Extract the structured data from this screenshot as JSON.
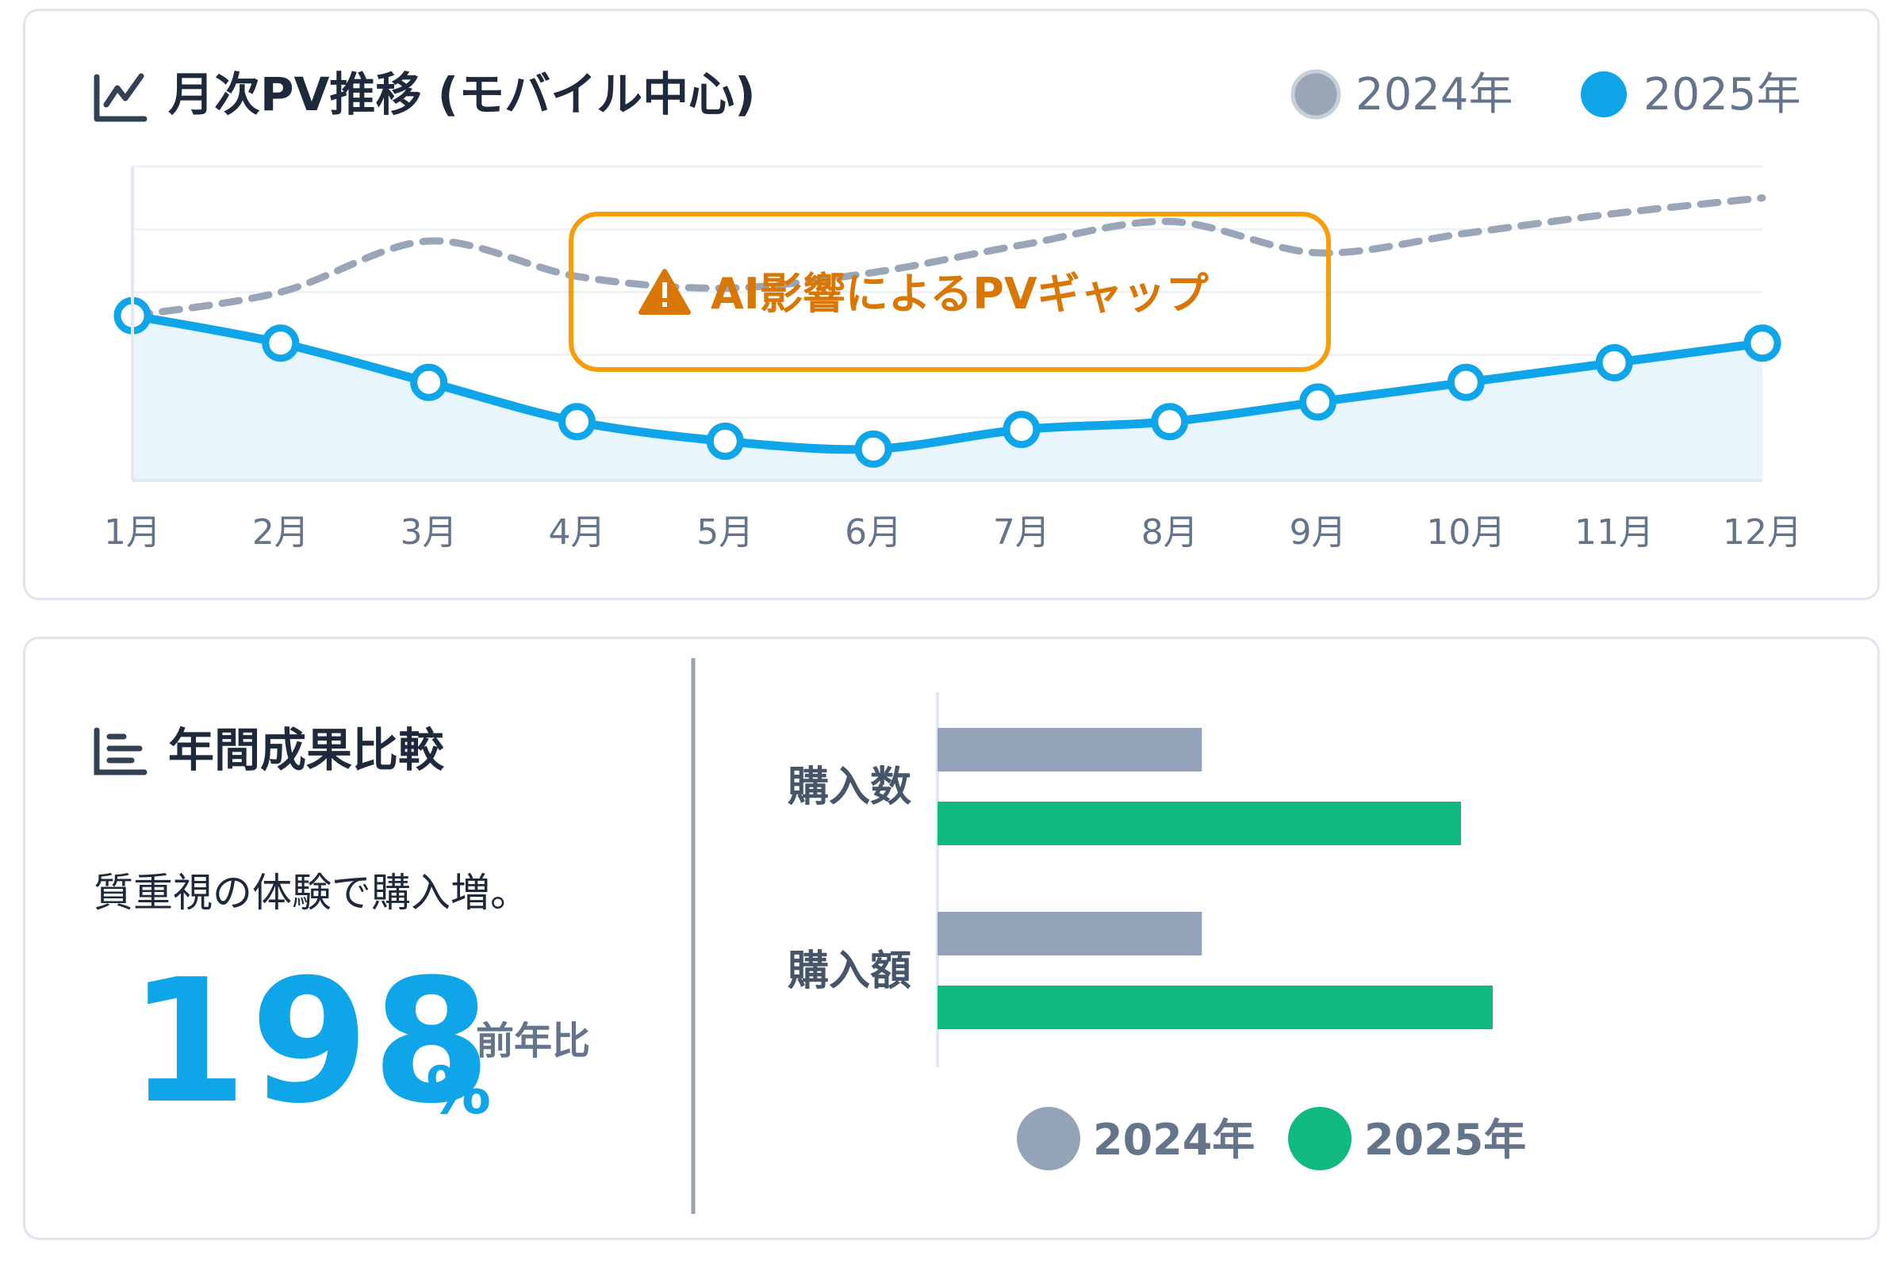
{
  "line_section": {
    "title": "月次PV推移 (モバイル中心)",
    "annotation": "AI影響によるPVギャップ"
  },
  "bar_section": {
    "title": "年間成果比較",
    "description": "質重視の体験で購入増。",
    "highlight_value": "198",
    "highlight_unit": "%",
    "highlight_caption": "前年比"
  },
  "colors": {
    "series_2024_line": "#9aa5b8",
    "series_2025_line": "#0ea5e9",
    "series_2024_bar": "#94a3b8",
    "series_2025_bar": "#10b981",
    "annotation": "#f59e0b",
    "annotation_text": "#d97706",
    "text_dark": "#1e293b",
    "text_muted": "#64748b"
  },
  "icons": {
    "line_title_icon": "line-chart-icon",
    "bar_title_icon": "bar-chart-icon",
    "annotation_icon": "warning-icon"
  },
  "chart_data": [
    {
      "type": "line",
      "x": [
        "1月",
        "2月",
        "3月",
        "4月",
        "5月",
        "6月",
        "7月",
        "8月",
        "9月",
        "10月",
        "11月",
        "12月"
      ],
      "series": [
        {
          "name": "2024年",
          "values": [
            102,
            108,
            121,
            112,
            109,
            113,
            120,
            126,
            118,
            123,
            128,
            132
          ],
          "style": "dashed"
        },
        {
          "name": "2025年",
          "values": [
            102,
            95,
            85,
            75,
            70,
            68,
            73,
            75,
            80,
            85,
            90,
            95
          ],
          "style": "solid-with-markers-and-area"
        }
      ],
      "ylim": [
        60,
        140
      ],
      "grid": true,
      "legend": "top-right"
    },
    {
      "type": "bar",
      "orientation": "horizontal",
      "categories": [
        "購入数",
        "購入額"
      ],
      "series": [
        {
          "name": "2024年",
          "values": [
            100,
            100
          ]
        },
        {
          "name": "2025年",
          "values": [
            198,
            210
          ]
        }
      ],
      "xlim": [
        0,
        240
      ],
      "legend": "bottom"
    }
  ]
}
